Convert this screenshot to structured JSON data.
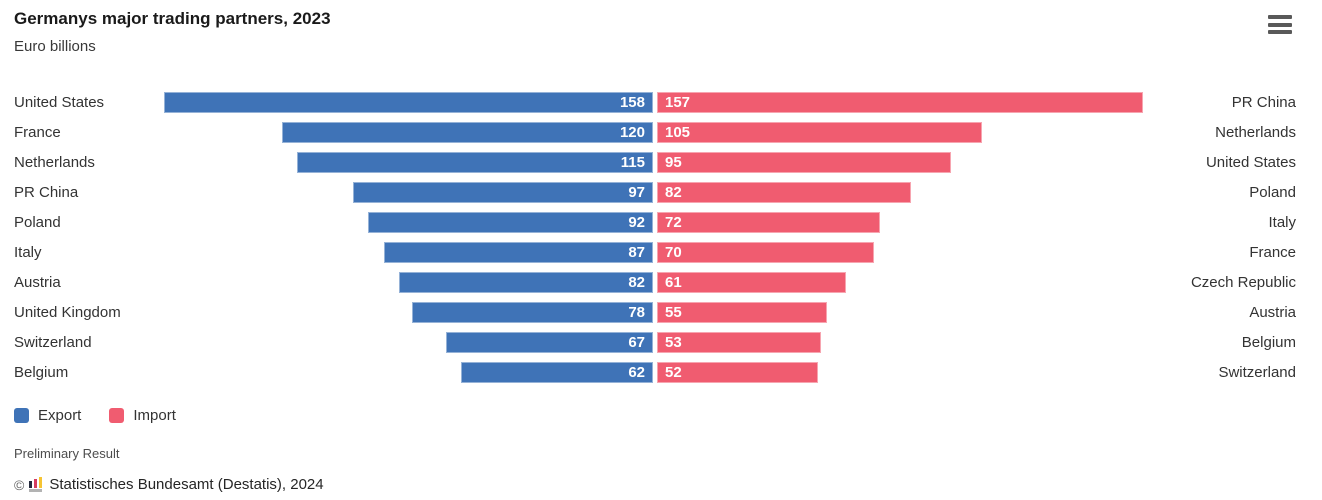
{
  "header": {
    "title": "Germanys major trading partners, 2023",
    "subtitle": "Euro billions"
  },
  "icons": {
    "context_menu": "hamburger-icon",
    "credit_logo": "destatis-bar-logo-icon"
  },
  "legend": {
    "export_label": "Export",
    "import_label": "Import"
  },
  "footnote": "Preliminary Result",
  "credit": {
    "copyright_symbol": "©",
    "text": "Statistisches Bundesamt (Destatis), 2024"
  },
  "colors": {
    "export": "#3f73b7",
    "import": "#f05c70",
    "logo_dark": "#24293d",
    "logo_red": "#d53d5f",
    "logo_yellow": "#f6c433"
  },
  "chart_data": {
    "type": "bar",
    "orientation": "horizontal",
    "variant": "diverging-butterfly",
    "title": "Germanys major trading partners, 2023",
    "subtitle": "Euro billions",
    "unit": "Euro billions",
    "axis_max": 158,
    "grid": false,
    "legend_position": "bottom-left",
    "value_labels": "inside-end, white bold",
    "series": [
      {
        "name": "Export",
        "side": "left",
        "color": "#3f73b7",
        "categories": [
          "United States",
          "France",
          "Netherlands",
          "PR China",
          "Poland",
          "Italy",
          "Austria",
          "United Kingdom",
          "Switzerland",
          "Belgium"
        ],
        "values": [
          158,
          120,
          115,
          97,
          92,
          87,
          82,
          78,
          67,
          62
        ]
      },
      {
        "name": "Import",
        "side": "right",
        "color": "#f05c70",
        "categories": [
          "PR China",
          "Netherlands",
          "United States",
          "Poland",
          "Italy",
          "France",
          "Czech Republic",
          "Austria",
          "Belgium",
          "Switzerland"
        ],
        "values": [
          157,
          105,
          95,
          82,
          72,
          70,
          61,
          55,
          53,
          52
        ]
      }
    ]
  }
}
